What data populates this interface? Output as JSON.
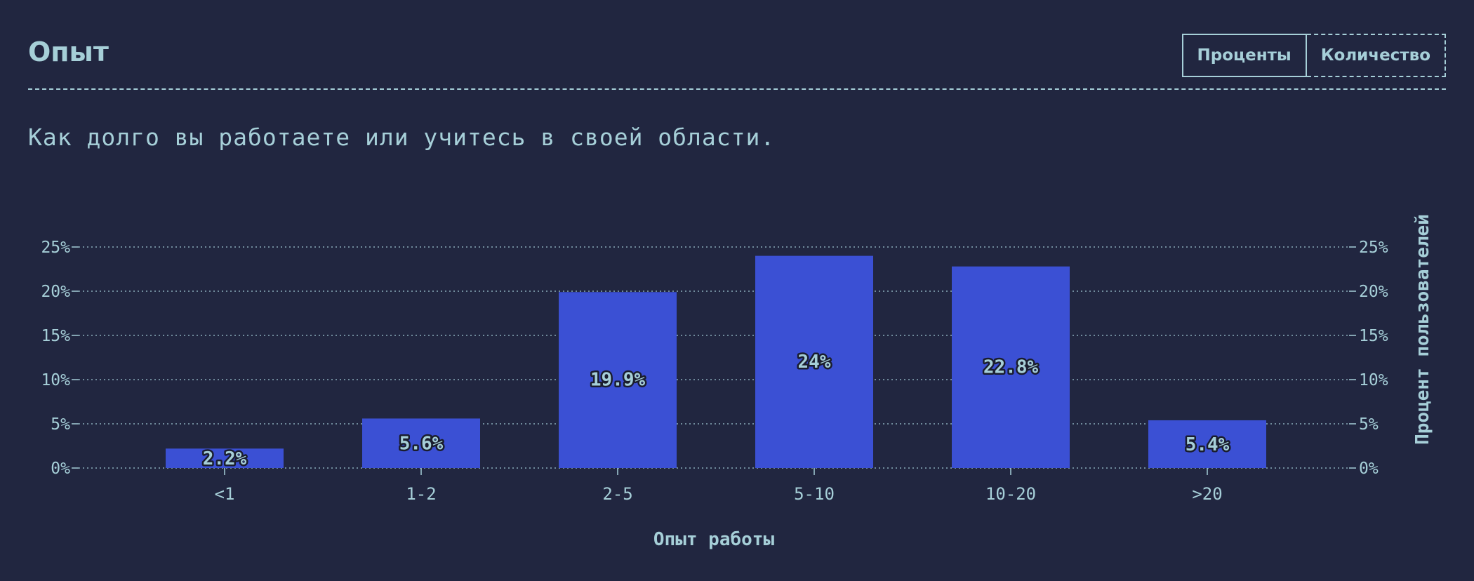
{
  "header": {
    "title": "Опыт",
    "toggle": {
      "percent_label": "Проценты",
      "count_label": "Количество",
      "active": "percent"
    }
  },
  "subtitle": "Как долго вы работаете или учитесь в своей области.",
  "colors": {
    "background": "#212640",
    "text": "#a6cfd8",
    "bar": "#3b50d4",
    "grid": "#a6cfd8"
  },
  "chart_data": {
    "type": "bar",
    "categories": [
      "<1",
      "1-2",
      "2-5",
      "5-10",
      "10-20",
      ">20"
    ],
    "values": [
      2.2,
      5.6,
      19.9,
      24,
      22.8,
      5.4
    ],
    "value_labels": [
      "2.2%",
      "5.6%",
      "19.9%",
      "24%",
      "22.8%",
      "5.4%"
    ],
    "xlabel": "Опыт работы",
    "ylabel": "Процент пользователей",
    "ylim": [
      0,
      25
    ],
    "yticks": [
      0,
      5,
      10,
      15,
      20,
      25
    ],
    "ytick_labels": [
      "0%",
      "5%",
      "10%",
      "15%",
      "20%",
      "25%"
    ],
    "grid": true,
    "legend": "none"
  }
}
